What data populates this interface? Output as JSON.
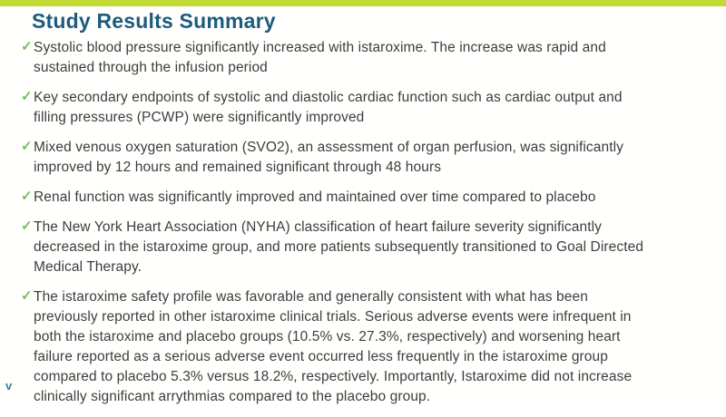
{
  "slide": {
    "title": "Study Results Summary"
  },
  "icons": {
    "checkmark": "✓"
  },
  "colors": {
    "top_bar": "#c2d833",
    "title": "#1d5b7d",
    "checkmark": "#72c05c",
    "body_text": "#3d3d3d",
    "logo_mark": "#35808e"
  },
  "bullets": [
    {
      "lines": [
        "Systolic blood pressure significantly increased with istaroxime. The increase was rapid and",
        "sustained through the infusion period"
      ]
    },
    {
      "lines": [
        "Key secondary endpoints of systolic and diastolic cardiac function such as cardiac output and",
        "filling pressures (PCWP) were significantly improved"
      ]
    },
    {
      "lines": [
        "Mixed venous oxygen saturation (SVO2), an assessment of organ perfusion, was significantly",
        "improved by 12 hours and remained significant through 48 hours"
      ]
    },
    {
      "lines": [
        "Renal function was significantly improved and maintained over time compared to placebo"
      ]
    },
    {
      "lines": [
        "The New York Heart Association (NYHA) classification of heart failure severity significantly",
        "decreased in the istaroxime group, and more patients subsequently transitioned to Goal Directed",
        "Medical Therapy."
      ]
    },
    {
      "lines": [
        "The istaroxime safety profile was favorable and generally consistent with what has been",
        "previously reported in other istaroxime clinical trials. Serious adverse events were infrequent in",
        "both the istaroxime and placebo groups (10.5% vs. 27.3%, respectively) and worsening heart",
        "failure reported as a serious adverse event occurred less frequently in the istaroxime group",
        "compared to placebo 5.3% versus 18.2%, respectively. Importantly, Istaroxime did not increase",
        "clinically significant arrythmias compared to the placebo group."
      ]
    }
  ],
  "footer": {
    "logo_glyph": "v"
  }
}
